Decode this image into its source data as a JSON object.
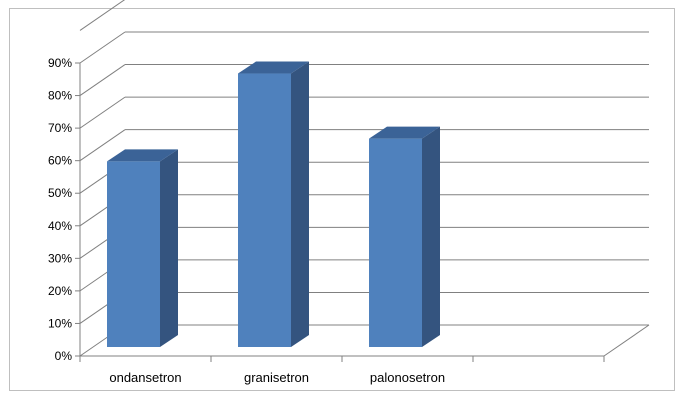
{
  "chart_data": {
    "type": "bar",
    "style": "3d-column",
    "categories": [
      "ondansetron",
      "granisetron",
      "palonosetron",
      ""
    ],
    "values": [
      57,
      84,
      64,
      null
    ],
    "y_ticks": [
      "0%",
      "10%",
      "20%",
      "30%",
      "40%",
      "50%",
      "60%",
      "70%",
      "80%",
      "90%"
    ],
    "ylim": [
      0,
      90
    ],
    "grid": true,
    "legend": "none",
    "colors": {
      "front": "#4f81bd",
      "side": "#34547f",
      "top": "#3b6397",
      "grid": "#808080"
    }
  }
}
